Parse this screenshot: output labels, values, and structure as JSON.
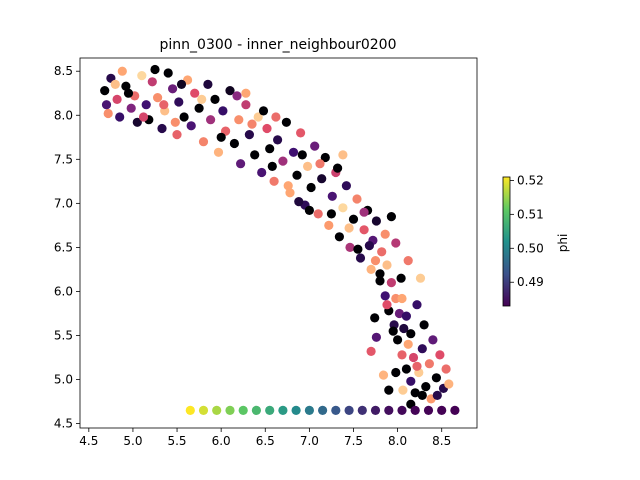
{
  "chart_data": {
    "type": "scatter",
    "title": "pinn_0300 - inner_neighbour0200",
    "xlabel": "",
    "ylabel": "",
    "xlim": [
      4.4,
      8.9
    ],
    "ylim": [
      4.45,
      8.65
    ],
    "xticks": [
      4.5,
      5.0,
      5.5,
      6.0,
      6.5,
      7.0,
      7.5,
      8.0,
      8.5
    ],
    "xtick_labels": [
      "4.5",
      "5.0",
      "5.5",
      "6.0",
      "6.5",
      "7.0",
      "7.5",
      "8.0",
      "8.5"
    ],
    "yticks": [
      4.5,
      5.0,
      5.5,
      6.0,
      6.5,
      7.0,
      7.5,
      8.0,
      8.5
    ],
    "ytick_labels": [
      "4.5",
      "5.0",
      "5.5",
      "6.0",
      "6.5",
      "7.0",
      "7.5",
      "8.0",
      "8.5"
    ],
    "grid": false,
    "colorbar": {
      "label": "phi",
      "colormap_cloud": "magma",
      "colormap_line": "viridis",
      "range": [
        0.483,
        0.521
      ],
      "ticks": [
        0.49,
        0.5,
        0.51,
        0.52
      ],
      "tick_labels": [
        "0.49",
        "0.50",
        "0.51",
        "0.52"
      ]
    },
    "series": [
      {
        "marker": "circle",
        "colormap": "magma",
        "x_range": [
          4.65,
          8.65
        ],
        "points": [
          [
            4.68,
            8.28,
            0.483
          ],
          [
            4.72,
            8.02,
            0.512
          ],
          [
            4.75,
            8.42,
            0.488
          ],
          [
            4.82,
            8.18,
            0.505
          ],
          [
            4.85,
            7.98,
            0.49
          ],
          [
            4.88,
            8.5,
            0.514
          ],
          [
            4.92,
            8.33,
            0.483
          ],
          [
            4.98,
            8.08,
            0.497
          ],
          [
            5.02,
            8.22,
            0.509
          ],
          [
            5.05,
            7.92,
            0.486
          ],
          [
            5.1,
            8.45,
            0.518
          ],
          [
            5.15,
            8.12,
            0.491
          ],
          [
            5.18,
            7.95,
            0.483
          ],
          [
            5.22,
            8.38,
            0.503
          ],
          [
            5.28,
            8.2,
            0.512
          ],
          [
            5.33,
            7.85,
            0.488
          ],
          [
            5.36,
            8.05,
            0.516
          ],
          [
            5.4,
            8.48,
            0.483
          ],
          [
            5.45,
            8.3,
            0.495
          ],
          [
            5.5,
            7.78,
            0.508
          ],
          [
            5.52,
            8.15,
            0.489
          ],
          [
            5.58,
            7.98,
            0.483
          ],
          [
            5.62,
            8.4,
            0.514
          ],
          [
            5.66,
            7.88,
            0.492
          ],
          [
            5.7,
            8.25,
            0.506
          ],
          [
            5.75,
            8.08,
            0.483
          ],
          [
            5.8,
            7.7,
            0.511
          ],
          [
            5.85,
            8.35,
            0.487
          ],
          [
            5.88,
            7.95,
            0.5
          ],
          [
            5.93,
            8.18,
            0.483
          ],
          [
            5.97,
            7.58,
            0.515
          ],
          [
            6.02,
            8.05,
            0.49
          ],
          [
            6.05,
            7.82,
            0.508
          ],
          [
            6.1,
            8.28,
            0.485
          ],
          [
            6.15,
            7.68,
            0.483
          ],
          [
            6.2,
            7.95,
            0.512
          ],
          [
            6.22,
            7.45,
            0.494
          ],
          [
            6.28,
            8.12,
            0.503
          ],
          [
            6.32,
            7.78,
            0.488
          ],
          [
            6.38,
            7.55,
            0.483
          ],
          [
            6.42,
            7.98,
            0.517
          ],
          [
            6.46,
            7.35,
            0.492
          ],
          [
            6.52,
            7.85,
            0.506
          ],
          [
            6.55,
            7.62,
            0.483
          ],
          [
            6.6,
            7.25,
            0.51
          ],
          [
            6.64,
            7.72,
            0.488
          ],
          [
            6.7,
            7.48,
            0.5
          ],
          [
            6.74,
            7.92,
            0.483
          ],
          [
            6.78,
            7.12,
            0.514
          ],
          [
            6.82,
            7.58,
            0.491
          ],
          [
            6.86,
            7.32,
            0.483
          ],
          [
            6.9,
            7.8,
            0.507
          ],
          [
            6.95,
            6.98,
            0.489
          ],
          [
            6.98,
            7.42,
            0.516
          ],
          [
            7.02,
            7.18,
            0.483
          ],
          [
            7.06,
            7.65,
            0.495
          ],
          [
            7.1,
            6.88,
            0.509
          ],
          [
            7.14,
            7.28,
            0.486
          ],
          [
            7.18,
            7.52,
            0.483
          ],
          [
            7.22,
            6.75,
            0.513
          ],
          [
            7.26,
            7.08,
            0.492
          ],
          [
            7.3,
            7.35,
            0.504
          ],
          [
            7.34,
            6.62,
            0.483
          ],
          [
            7.38,
            6.95,
            0.518
          ],
          [
            7.42,
            7.2,
            0.489
          ],
          [
            7.46,
            6.5,
            0.501
          ],
          [
            7.5,
            6.82,
            0.483
          ],
          [
            7.54,
            7.05,
            0.511
          ],
          [
            7.58,
            6.38,
            0.488
          ],
          [
            7.62,
            6.7,
            0.507
          ],
          [
            7.66,
            6.92,
            0.483
          ],
          [
            7.7,
            6.25,
            0.515
          ],
          [
            7.72,
            6.58,
            0.493
          ],
          [
            7.76,
            6.8,
            0.486
          ],
          [
            7.8,
            6.12,
            0.483
          ],
          [
            7.82,
            6.45,
            0.509
          ],
          [
            7.86,
            5.95,
            0.491
          ],
          [
            7.88,
            6.3,
            0.516
          ],
          [
            7.9,
            5.78,
            0.483
          ],
          [
            7.93,
            6.1,
            0.503
          ],
          [
            7.96,
            5.62,
            0.488
          ],
          [
            7.98,
            5.92,
            0.512
          ],
          [
            8.0,
            5.45,
            0.483
          ],
          [
            8.02,
            5.75,
            0.495
          ],
          [
            8.05,
            5.28,
            0.508
          ],
          [
            8.07,
            5.58,
            0.487
          ],
          [
            8.1,
            5.12,
            0.483
          ],
          [
            8.12,
            5.4,
            0.514
          ],
          [
            8.15,
            4.98,
            0.49
          ],
          [
            8.18,
            5.25,
            0.505
          ],
          [
            8.2,
            4.85,
            0.483
          ],
          [
            8.24,
            5.08,
            0.517
          ],
          [
            8.28,
            5.35,
            0.489
          ],
          [
            8.32,
            4.92,
            0.483
          ],
          [
            8.36,
            5.18,
            0.51
          ],
          [
            8.4,
            5.45,
            0.494
          ],
          [
            8.44,
            5.02,
            0.483
          ],
          [
            8.48,
            5.28,
            0.506
          ],
          [
            8.52,
            4.9,
            0.488
          ],
          [
            8.58,
            4.95,
            0.515
          ],
          [
            7.84,
            5.05,
            0.515
          ],
          [
            7.9,
            4.88,
            0.483
          ],
          [
            7.76,
            5.48,
            0.493
          ],
          [
            7.7,
            5.32,
            0.507
          ],
          [
            7.74,
            5.7,
            0.483
          ],
          [
            8.26,
            6.15,
            0.517
          ],
          [
            8.22,
            5.85,
            0.49
          ],
          [
            8.3,
            5.62,
            0.483
          ],
          [
            6.28,
            8.25,
            0.514
          ],
          [
            6.48,
            8.05,
            0.483
          ],
          [
            6.62,
            7.98,
            0.509
          ],
          [
            6.92,
            7.55,
            0.483
          ],
          [
            7.38,
            7.55,
            0.516
          ],
          [
            7.32,
            7.4,
            0.483
          ],
          [
            7.86,
            6.65,
            0.512
          ],
          [
            7.93,
            6.85,
            0.483
          ],
          [
            7.98,
            6.55,
            0.502
          ],
          [
            5.25,
            8.52,
            0.483
          ],
          [
            5.48,
            7.92,
            0.512
          ],
          [
            5.12,
            7.98,
            0.505
          ],
          [
            4.7,
            8.12,
            0.492
          ],
          [
            4.8,
            8.35,
            0.516
          ],
          [
            4.95,
            8.25,
            0.483
          ],
          [
            5.35,
            8.12,
            0.508
          ],
          [
            5.55,
            8.35,
            0.485
          ],
          [
            5.78,
            8.18,
            0.517
          ],
          [
            6.0,
            7.75,
            0.483
          ],
          [
            6.18,
            8.22,
            0.498
          ],
          [
            6.35,
            7.9,
            0.511
          ],
          [
            6.58,
            7.42,
            0.483
          ],
          [
            6.76,
            7.2,
            0.514
          ],
          [
            6.88,
            7.02,
            0.487
          ],
          [
            7.0,
            6.92,
            0.483
          ],
          [
            7.12,
            7.45,
            0.51
          ],
          [
            7.25,
            6.88,
            0.483
          ],
          [
            7.45,
            6.72,
            0.516
          ],
          [
            7.55,
            6.48,
            0.483
          ],
          [
            7.62,
            6.9,
            0.5
          ],
          [
            7.68,
            6.52,
            0.488
          ],
          [
            7.75,
            6.35,
            0.512
          ],
          [
            7.8,
            6.2,
            0.483
          ],
          [
            7.88,
            5.85,
            0.506
          ],
          [
            7.95,
            5.55,
            0.483
          ],
          [
            8.05,
            5.92,
            0.514
          ],
          [
            8.1,
            5.72,
            0.49
          ],
          [
            8.15,
            5.52,
            0.483
          ],
          [
            8.22,
            5.15,
            0.508
          ],
          [
            8.28,
            4.82,
            0.483
          ],
          [
            8.38,
            4.78,
            0.513
          ],
          [
            8.45,
            4.82,
            0.488
          ],
          [
            8.55,
            5.12,
            0.509
          ],
          [
            8.15,
            4.72,
            0.483
          ],
          [
            8.06,
            4.88,
            0.517
          ],
          [
            7.98,
            5.08,
            0.483
          ],
          [
            8.12,
            6.35,
            0.51
          ],
          [
            8.04,
            6.15,
            0.483
          ]
        ]
      },
      {
        "marker": "circle",
        "colormap": "viridis",
        "y": 4.65,
        "points": [
          [
            5.65,
            4.65,
            0.521
          ],
          [
            5.8,
            4.65,
            0.5185
          ],
          [
            5.95,
            4.65,
            0.516
          ],
          [
            6.1,
            4.65,
            0.5135
          ],
          [
            6.25,
            4.65,
            0.511
          ],
          [
            6.4,
            4.65,
            0.5085
          ],
          [
            6.55,
            4.65,
            0.506
          ],
          [
            6.7,
            4.65,
            0.5035
          ],
          [
            6.85,
            4.65,
            0.501
          ],
          [
            7.0,
            4.65,
            0.4985
          ],
          [
            7.15,
            4.65,
            0.496
          ],
          [
            7.3,
            4.65,
            0.4935
          ],
          [
            7.45,
            4.65,
            0.491
          ],
          [
            7.6,
            4.65,
            0.4885
          ],
          [
            7.75,
            4.65,
            0.486
          ],
          [
            7.9,
            4.65,
            0.4845
          ],
          [
            8.05,
            4.65,
            0.4838
          ],
          [
            8.2,
            4.65,
            0.4834
          ],
          [
            8.35,
            4.65,
            0.4832
          ],
          [
            8.5,
            4.65,
            0.4831
          ],
          [
            8.65,
            4.65,
            0.483
          ]
        ]
      }
    ]
  }
}
